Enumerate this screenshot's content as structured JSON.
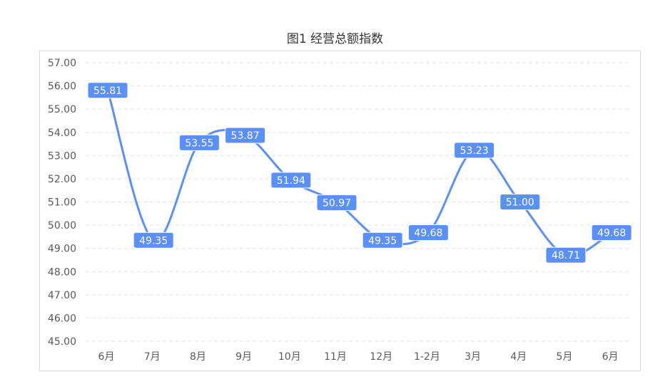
{
  "chart_data": {
    "type": "line",
    "title": "图1 经营总额指数",
    "categories": [
      "6月",
      "7月",
      "8月",
      "9月",
      "10月",
      "11月",
      "12月",
      "1-2月",
      "3月",
      "4月",
      "5月",
      "6月"
    ],
    "series": [
      {
        "values": [
          55.81,
          49.35,
          53.55,
          53.87,
          51.94,
          50.97,
          49.35,
          49.68,
          53.23,
          51.0,
          48.71,
          49.68
        ]
      }
    ],
    "data_labels": [
      "55.81",
      "49.35",
      "53.55",
      "53.87",
      "51.94",
      "50.97",
      "49.35",
      "49.68",
      "53.23",
      "51.00",
      "48.71",
      "49.68"
    ],
    "y_ticks": [
      "45.00",
      "46.00",
      "47.00",
      "48.00",
      "49.00",
      "50.00",
      "51.00",
      "52.00",
      "53.00",
      "54.00",
      "55.00",
      "56.00",
      "57.00"
    ],
    "ylim": [
      45,
      57
    ],
    "grid": "horizontal-dashed",
    "legend": "none",
    "colors": {
      "line": "#5B8FF9",
      "label_bg": "#5B8FF9",
      "grid": "#e3e3e3",
      "frame": "#d9d9d9"
    }
  }
}
